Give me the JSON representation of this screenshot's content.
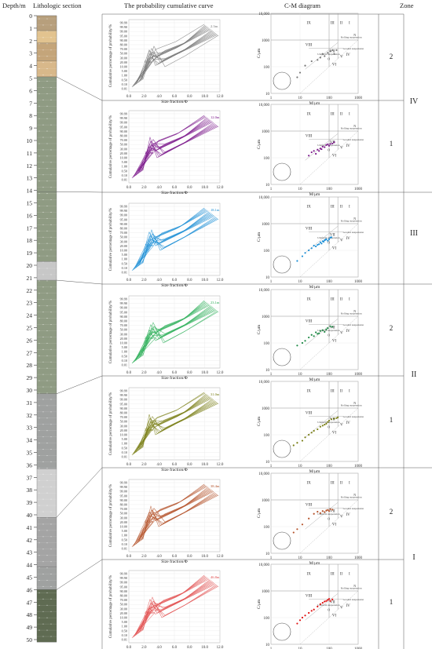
{
  "headers": {
    "depth": "Depth/m",
    "lithology": "Lithologic section",
    "curve": "The probability cumulative curve",
    "cm": "C-M diagram",
    "zone": "Zone"
  },
  "depth_ticks": [
    "0",
    "1",
    "2",
    "3",
    "4",
    "5",
    "6",
    "7",
    "8",
    "9",
    "10",
    "11",
    "12",
    "13",
    "14",
    "15",
    "16",
    "17",
    "18",
    "19",
    "20",
    "21",
    "22",
    "23",
    "24",
    "25",
    "26",
    "27",
    "28",
    "29",
    "30",
    "31",
    "32",
    "33",
    "34",
    "35",
    "36",
    "37",
    "38",
    "39",
    "40",
    "41",
    "42",
    "43",
    "44",
    "45",
    "46",
    "47",
    "48",
    "49",
    "50"
  ],
  "lithology_colors": [
    "#b79f7c",
    "#d8b88a",
    "#8f9b83",
    "#c7c7c7",
    "#8f9b83",
    "#9fa1a0",
    "#d0d0d0",
    "#a4a4a4",
    "#5f6b52"
  ],
  "zones": {
    "major": [
      "IV",
      "III",
      "II",
      "I"
    ],
    "sub": [
      "2",
      "1",
      "2",
      "1",
      "2",
      "1"
    ]
  },
  "curve_axes": {
    "ylabel": "Cumulative percentage of probability/%",
    "xlabel": "Size fraction/Φ",
    "y_ticks": [
      "99.99",
      "99.90",
      "99.00",
      "95.00",
      "90.00",
      "80.00",
      "70.00",
      "50.00",
      "30.00",
      "20.00",
      "10.00",
      "5.00",
      "1.00",
      "0.50",
      "0.10",
      "0.01"
    ],
    "x_ticks": [
      "0.0",
      "2.0",
      "4.0",
      "6.0",
      "8.0",
      "10.0",
      "12.0"
    ]
  },
  "cm_axes": {
    "ylabel": "C/μm",
    "xlabel": "M/μm",
    "y_ticks": [
      "10,000",
      "1000",
      "100",
      "10"
    ],
    "x_ticks": [
      "1",
      "10",
      "100",
      "1000"
    ],
    "regions": [
      "IX",
      "VIII",
      "VII",
      "VI",
      "V",
      "IV",
      "III",
      "II",
      "I",
      "N",
      "O",
      "P",
      "Q",
      "R",
      "S"
    ],
    "notes": [
      "Rolling suspension",
      "Graded suspension",
      "Uniform suspension"
    ]
  },
  "chart_data": [
    {
      "type": "line",
      "zone": "IV-2",
      "color": "#777777",
      "labels": [
        "2.3m",
        "0.9m"
      ]
    },
    {
      "type": "line",
      "zone": "IV-1",
      "color": "#7d1a8c",
      "labels": [
        "12.0m",
        "12.9m"
      ]
    },
    {
      "type": "line",
      "zone": "III",
      "color": "#1d8fd6",
      "labels": [
        "18.1m",
        "19.5m"
      ]
    },
    {
      "type": "line",
      "zone": "II-2",
      "color": "#2fb05a",
      "labels": [
        "23.1m",
        "27.6m"
      ]
    },
    {
      "type": "line",
      "zone": "II-1",
      "color": "#7a7f16",
      "labels": [
        "31.0m",
        "33.4m"
      ]
    },
    {
      "type": "line",
      "zone": "I-2",
      "color": "#b5532b",
      "labels": [
        "38.4m",
        "41.1m"
      ]
    },
    {
      "type": "line",
      "zone": "I-1",
      "color": "#e25050",
      "labels": [
        "46.8m",
        "48.0m"
      ]
    }
  ],
  "cm_scatter": [
    {
      "zone": "IV-2",
      "color": "#777777",
      "points": [
        [
          8,
          40
        ],
        [
          10,
          60
        ],
        [
          15,
          110
        ],
        [
          25,
          160
        ],
        [
          40,
          180
        ],
        [
          50,
          220
        ],
        [
          60,
          300
        ],
        [
          70,
          250
        ],
        [
          90,
          330
        ],
        [
          110,
          380
        ],
        [
          130,
          420
        ],
        [
          150,
          300
        ],
        [
          180,
          420
        ]
      ]
    },
    {
      "zone": "IV-1",
      "color": "#7d1a8c",
      "points": [
        [
          20,
          120
        ],
        [
          25,
          160
        ],
        [
          30,
          180
        ],
        [
          35,
          140
        ],
        [
          40,
          200
        ],
        [
          50,
          220
        ],
        [
          60,
          260
        ],
        [
          70,
          250
        ],
        [
          80,
          300
        ],
        [
          90,
          320
        ],
        [
          100,
          280
        ],
        [
          110,
          330
        ],
        [
          130,
          340
        ],
        [
          150,
          380
        ],
        [
          45,
          180
        ],
        [
          55,
          210
        ]
      ]
    },
    {
      "zone": "III",
      "color": "#1d8fd6",
      "points": [
        [
          8,
          40
        ],
        [
          12,
          60
        ],
        [
          15,
          80
        ],
        [
          20,
          100
        ],
        [
          25,
          120
        ],
        [
          30,
          150
        ],
        [
          35,
          140
        ],
        [
          40,
          160
        ],
        [
          50,
          200
        ],
        [
          55,
          180
        ],
        [
          60,
          220
        ],
        [
          70,
          240
        ],
        [
          80,
          260
        ],
        [
          90,
          230
        ],
        [
          100,
          260
        ],
        [
          110,
          300
        ],
        [
          120,
          310
        ],
        [
          45,
          170
        ],
        [
          65,
          210
        ],
        [
          75,
          250
        ]
      ]
    },
    {
      "zone": "II-2",
      "color": "#1f8a46",
      "points": [
        [
          8,
          80
        ],
        [
          12,
          100
        ],
        [
          15,
          120
        ],
        [
          20,
          160
        ],
        [
          25,
          200
        ],
        [
          30,
          180
        ],
        [
          35,
          250
        ],
        [
          40,
          220
        ],
        [
          50,
          280
        ],
        [
          60,
          300
        ],
        [
          70,
          260
        ],
        [
          80,
          320
        ],
        [
          90,
          360
        ],
        [
          110,
          420
        ],
        [
          130,
          400
        ],
        [
          45,
          230
        ]
      ]
    },
    {
      "zone": "II-1",
      "color": "#7a7f16",
      "points": [
        [
          6,
          40
        ],
        [
          8,
          50
        ],
        [
          12,
          60
        ],
        [
          15,
          80
        ],
        [
          20,
          100
        ],
        [
          25,
          120
        ],
        [
          30,
          140
        ],
        [
          40,
          160
        ],
        [
          50,
          200
        ],
        [
          60,
          220
        ],
        [
          70,
          240
        ],
        [
          80,
          260
        ],
        [
          90,
          300
        ],
        [
          100,
          340
        ],
        [
          120,
          380
        ],
        [
          150,
          400
        ],
        [
          180,
          420
        ],
        [
          200,
          450
        ]
      ]
    },
    {
      "zone": "I-2",
      "color": "#b5532b",
      "points": [
        [
          6,
          60
        ],
        [
          8,
          80
        ],
        [
          12,
          120
        ],
        [
          20,
          200
        ],
        [
          30,
          300
        ],
        [
          40,
          360
        ],
        [
          50,
          320
        ],
        [
          60,
          380
        ],
        [
          70,
          350
        ],
        [
          80,
          400
        ],
        [
          90,
          420
        ],
        [
          100,
          380
        ],
        [
          110,
          450
        ],
        [
          130,
          430
        ]
      ]
    },
    {
      "zone": "I-1",
      "color": "#e01010",
      "points": [
        [
          8,
          60
        ],
        [
          10,
          80
        ],
        [
          12,
          100
        ],
        [
          15,
          120
        ],
        [
          20,
          150
        ],
        [
          25,
          180
        ],
        [
          30,
          200
        ],
        [
          40,
          260
        ],
        [
          50,
          320
        ],
        [
          60,
          360
        ],
        [
          70,
          400
        ],
        [
          80,
          420
        ],
        [
          90,
          460
        ],
        [
          100,
          500
        ],
        [
          110,
          420
        ],
        [
          130,
          480
        ]
      ]
    }
  ]
}
